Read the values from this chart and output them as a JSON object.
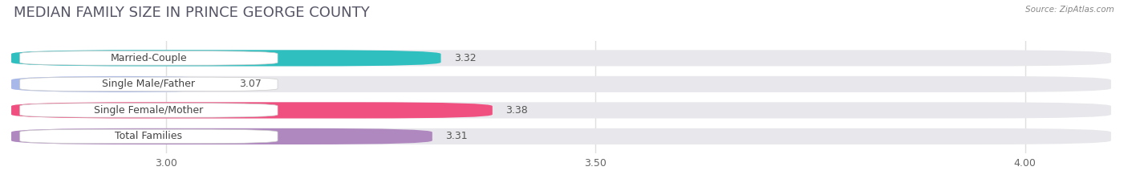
{
  "title": "MEDIAN FAMILY SIZE IN PRINCE GEORGE COUNTY",
  "source_text": "Source: ZipAtlas.com",
  "categories": [
    "Married-Couple",
    "Single Male/Father",
    "Single Female/Mother",
    "Total Families"
  ],
  "values": [
    3.32,
    3.07,
    3.38,
    3.31
  ],
  "bar_colors": [
    "#30bfbf",
    "#a8b8e8",
    "#f05080",
    "#b088c0"
  ],
  "bar_bg_color": "#e8e8ec",
  "xlim_min": 2.82,
  "xlim_max": 4.1,
  "xticks": [
    3.0,
    3.5,
    4.0
  ],
  "xtick_labels": [
    "3.00",
    "3.50",
    "4.00"
  ],
  "title_fontsize": 13,
  "label_fontsize": 9,
  "value_fontsize": 9,
  "bar_height": 0.62,
  "background_color": "#ffffff",
  "grid_color": "#d8d8d8"
}
